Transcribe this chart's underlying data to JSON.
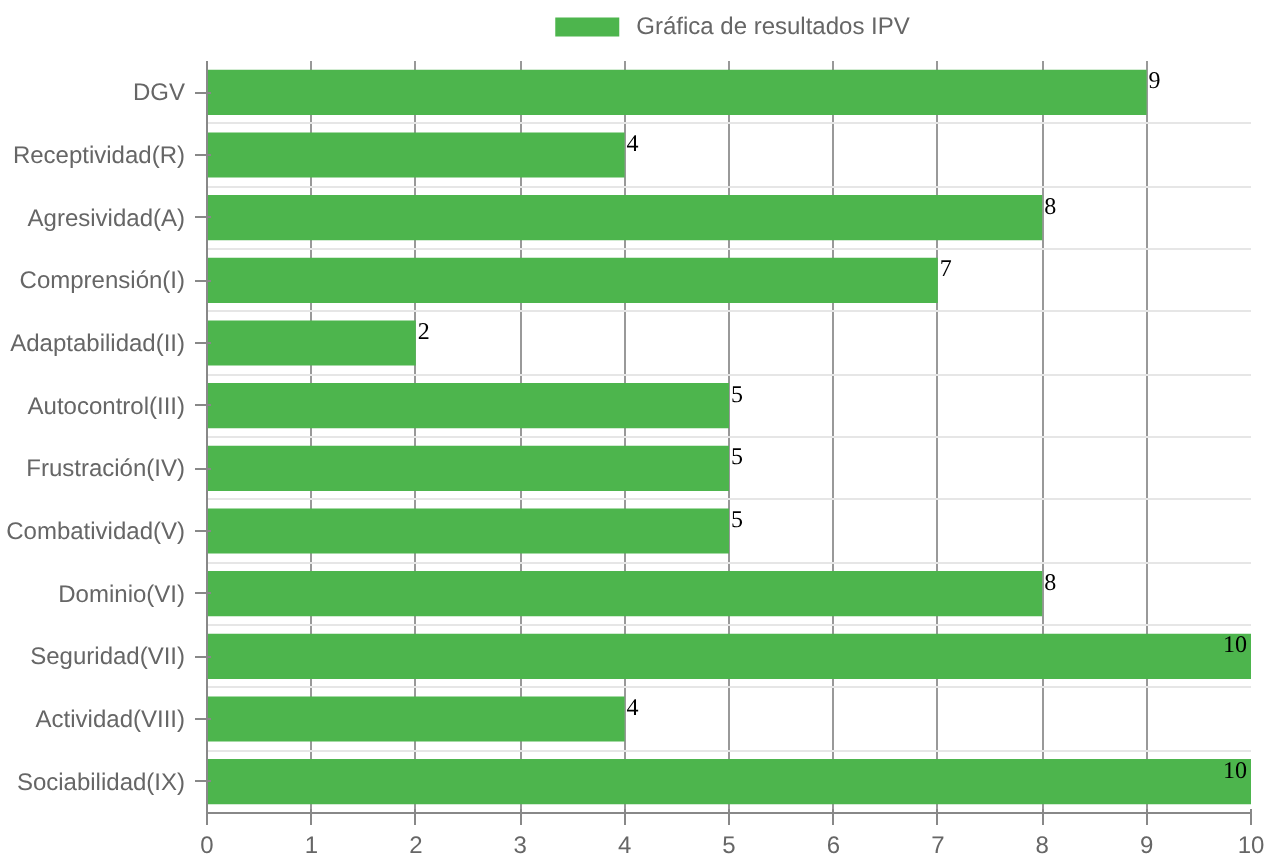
{
  "chart_data": {
    "type": "bar",
    "orientation": "horizontal",
    "categories": [
      "DGV",
      "Receptividad(R)",
      "Agresividad(A)",
      "Comprensión(I)",
      "Adaptabilidad(II)",
      "Autocontrol(III)",
      "Frustración(IV)",
      "Combatividad(V)",
      "Dominio(VI)",
      "Seguridad(VII)",
      "Actividad(VIII)",
      "Sociabilidad(IX)"
    ],
    "series": [
      {
        "name": "Gráfica de resultados IPV",
        "color": "#4db54d",
        "values": [
          9,
          4,
          8,
          7,
          2,
          5,
          5,
          5,
          8,
          10,
          4,
          10
        ]
      }
    ],
    "xlim": [
      0,
      10
    ],
    "xticks": [
      0,
      1,
      2,
      3,
      4,
      5,
      6,
      7,
      8,
      9,
      10
    ],
    "grid": true,
    "legend": "top",
    "data_labels": true
  }
}
